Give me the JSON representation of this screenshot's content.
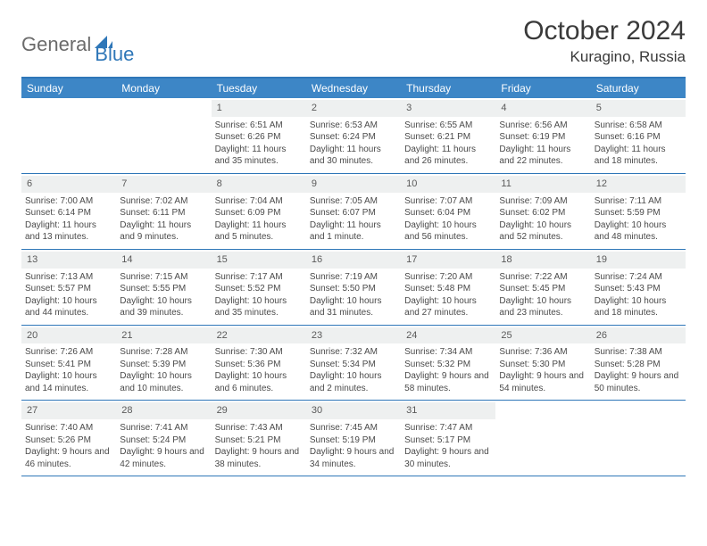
{
  "logo": {
    "part1": "General",
    "part2": "Blue"
  },
  "title": "October 2024",
  "location": "Kuragino, Russia",
  "colors": {
    "header_bg": "#3d86c6",
    "border": "#2f77b8",
    "daynum_bg": "#eef0f0",
    "text": "#4a4a4a"
  },
  "day_names": [
    "Sunday",
    "Monday",
    "Tuesday",
    "Wednesday",
    "Thursday",
    "Friday",
    "Saturday"
  ],
  "weeks": [
    [
      {
        "blank": true
      },
      {
        "blank": true
      },
      {
        "num": "1",
        "sunrise": "6:51 AM",
        "sunset": "6:26 PM",
        "daylight": "11 hours and 35 minutes."
      },
      {
        "num": "2",
        "sunrise": "6:53 AM",
        "sunset": "6:24 PM",
        "daylight": "11 hours and 30 minutes."
      },
      {
        "num": "3",
        "sunrise": "6:55 AM",
        "sunset": "6:21 PM",
        "daylight": "11 hours and 26 minutes."
      },
      {
        "num": "4",
        "sunrise": "6:56 AM",
        "sunset": "6:19 PM",
        "daylight": "11 hours and 22 minutes."
      },
      {
        "num": "5",
        "sunrise": "6:58 AM",
        "sunset": "6:16 PM",
        "daylight": "11 hours and 18 minutes."
      }
    ],
    [
      {
        "num": "6",
        "sunrise": "7:00 AM",
        "sunset": "6:14 PM",
        "daylight": "11 hours and 13 minutes."
      },
      {
        "num": "7",
        "sunrise": "7:02 AM",
        "sunset": "6:11 PM",
        "daylight": "11 hours and 9 minutes."
      },
      {
        "num": "8",
        "sunrise": "7:04 AM",
        "sunset": "6:09 PM",
        "daylight": "11 hours and 5 minutes."
      },
      {
        "num": "9",
        "sunrise": "7:05 AM",
        "sunset": "6:07 PM",
        "daylight": "11 hours and 1 minute."
      },
      {
        "num": "10",
        "sunrise": "7:07 AM",
        "sunset": "6:04 PM",
        "daylight": "10 hours and 56 minutes."
      },
      {
        "num": "11",
        "sunrise": "7:09 AM",
        "sunset": "6:02 PM",
        "daylight": "10 hours and 52 minutes."
      },
      {
        "num": "12",
        "sunrise": "7:11 AM",
        "sunset": "5:59 PM",
        "daylight": "10 hours and 48 minutes."
      }
    ],
    [
      {
        "num": "13",
        "sunrise": "7:13 AM",
        "sunset": "5:57 PM",
        "daylight": "10 hours and 44 minutes."
      },
      {
        "num": "14",
        "sunrise": "7:15 AM",
        "sunset": "5:55 PM",
        "daylight": "10 hours and 39 minutes."
      },
      {
        "num": "15",
        "sunrise": "7:17 AM",
        "sunset": "5:52 PM",
        "daylight": "10 hours and 35 minutes."
      },
      {
        "num": "16",
        "sunrise": "7:19 AM",
        "sunset": "5:50 PM",
        "daylight": "10 hours and 31 minutes."
      },
      {
        "num": "17",
        "sunrise": "7:20 AM",
        "sunset": "5:48 PM",
        "daylight": "10 hours and 27 minutes."
      },
      {
        "num": "18",
        "sunrise": "7:22 AM",
        "sunset": "5:45 PM",
        "daylight": "10 hours and 23 minutes."
      },
      {
        "num": "19",
        "sunrise": "7:24 AM",
        "sunset": "5:43 PM",
        "daylight": "10 hours and 18 minutes."
      }
    ],
    [
      {
        "num": "20",
        "sunrise": "7:26 AM",
        "sunset": "5:41 PM",
        "daylight": "10 hours and 14 minutes."
      },
      {
        "num": "21",
        "sunrise": "7:28 AM",
        "sunset": "5:39 PM",
        "daylight": "10 hours and 10 minutes."
      },
      {
        "num": "22",
        "sunrise": "7:30 AM",
        "sunset": "5:36 PM",
        "daylight": "10 hours and 6 minutes."
      },
      {
        "num": "23",
        "sunrise": "7:32 AM",
        "sunset": "5:34 PM",
        "daylight": "10 hours and 2 minutes."
      },
      {
        "num": "24",
        "sunrise": "7:34 AM",
        "sunset": "5:32 PM",
        "daylight": "9 hours and 58 minutes."
      },
      {
        "num": "25",
        "sunrise": "7:36 AM",
        "sunset": "5:30 PM",
        "daylight": "9 hours and 54 minutes."
      },
      {
        "num": "26",
        "sunrise": "7:38 AM",
        "sunset": "5:28 PM",
        "daylight": "9 hours and 50 minutes."
      }
    ],
    [
      {
        "num": "27",
        "sunrise": "7:40 AM",
        "sunset": "5:26 PM",
        "daylight": "9 hours and 46 minutes."
      },
      {
        "num": "28",
        "sunrise": "7:41 AM",
        "sunset": "5:24 PM",
        "daylight": "9 hours and 42 minutes."
      },
      {
        "num": "29",
        "sunrise": "7:43 AM",
        "sunset": "5:21 PM",
        "daylight": "9 hours and 38 minutes."
      },
      {
        "num": "30",
        "sunrise": "7:45 AM",
        "sunset": "5:19 PM",
        "daylight": "9 hours and 34 minutes."
      },
      {
        "num": "31",
        "sunrise": "7:47 AM",
        "sunset": "5:17 PM",
        "daylight": "9 hours and 30 minutes."
      },
      {
        "blank": true
      },
      {
        "blank": true
      }
    ]
  ],
  "labels": {
    "sunrise": "Sunrise:",
    "sunset": "Sunset:",
    "daylight": "Daylight:"
  }
}
